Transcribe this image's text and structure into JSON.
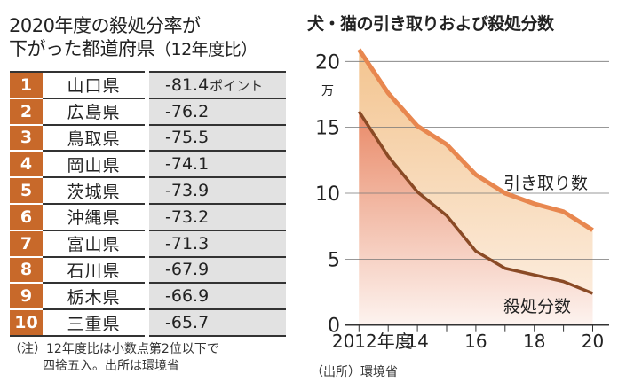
{
  "left": {
    "title_line1": "2020年度の殺処分率が",
    "title_line2": "下がった都道府県",
    "title_suffix": "（12年度比）",
    "unit": "ポイント",
    "rows": [
      {
        "rank": "1",
        "pref": "山口県",
        "value": "-81.4"
      },
      {
        "rank": "2",
        "pref": "広島県",
        "value": "-76.2"
      },
      {
        "rank": "3",
        "pref": "鳥取県",
        "value": "-75.5"
      },
      {
        "rank": "4",
        "pref": "岡山県",
        "value": "-74.1"
      },
      {
        "rank": "5",
        "pref": "茨城県",
        "value": "-73.9"
      },
      {
        "rank": "6",
        "pref": "沖縄県",
        "value": "-73.2"
      },
      {
        "rank": "7",
        "pref": "富山県",
        "value": "-71.3"
      },
      {
        "rank": "8",
        "pref": "石川県",
        "value": "-67.9"
      },
      {
        "rank": "9",
        "pref": "栃木県",
        "value": "-66.9"
      },
      {
        "rank": "10",
        "pref": "三重県",
        "value": "-65.7"
      }
    ],
    "note1": "（注）12年度比は小数点第2位以下で",
    "note2": "四捨五入。出所は環境省"
  },
  "chart_data": {
    "type": "area",
    "title": "犬・猫の引き取りおよび殺処分数",
    "ylabel": "万",
    "ylim": [
      0,
      20
    ],
    "yticks": [
      "0",
      "5",
      "10",
      "15",
      "20"
    ],
    "x": [
      2012,
      2013,
      2014,
      2015,
      2016,
      2017,
      2018,
      2019,
      2020
    ],
    "xtick_labels": [
      "2012年度",
      "14",
      "16",
      "18",
      "20"
    ],
    "series": [
      {
        "name": "引き取り数",
        "color": "#e8874f",
        "values": [
          20.9,
          17.6,
          15.1,
          13.7,
          11.4,
          10.0,
          9.2,
          8.6,
          7.2
        ]
      },
      {
        "name": "殺処分数",
        "color": "#8a4a25",
        "values": [
          16.2,
          12.8,
          10.1,
          8.3,
          5.6,
          4.3,
          3.8,
          3.3,
          2.4
        ]
      }
    ],
    "source": "（出所）環境省"
  }
}
